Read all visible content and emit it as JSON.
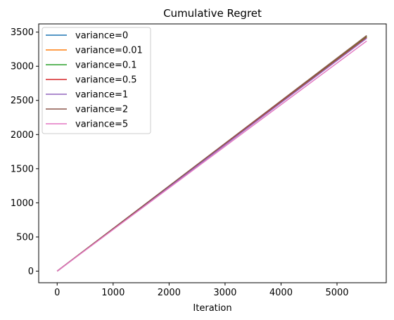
{
  "chart_data": {
    "type": "line",
    "title": "Cumulative Regret",
    "xlabel": "Iteration",
    "ylabel": "",
    "xlim": [
      -330,
      5880
    ],
    "ylim": [
      -170,
      3620
    ],
    "xticks": [
      0,
      1000,
      2000,
      3000,
      4000,
      5000
    ],
    "yticks": [
      0,
      500,
      1000,
      1500,
      2000,
      2500,
      3000,
      3500
    ],
    "grid": false,
    "legend_position": "top-left",
    "series": [
      {
        "name": "variance=0",
        "color": "#1f77b4",
        "x": [
          0,
          5530
        ],
        "y": [
          0,
          3440
        ]
      },
      {
        "name": "variance=0.01",
        "color": "#ff7f0e",
        "x": [
          0,
          5530
        ],
        "y": [
          0,
          3435
        ]
      },
      {
        "name": "variance=0.1",
        "color": "#2ca02c",
        "x": [
          0,
          5530
        ],
        "y": [
          0,
          3430
        ]
      },
      {
        "name": "variance=0.5",
        "color": "#d62728",
        "x": [
          0,
          5530
        ],
        "y": [
          0,
          3420
        ]
      },
      {
        "name": "variance=1",
        "color": "#9467bd",
        "x": [
          0,
          5530
        ],
        "y": [
          0,
          3410
        ]
      },
      {
        "name": "variance=2",
        "color": "#8c564b",
        "x": [
          0,
          5530
        ],
        "y": [
          0,
          3450
        ]
      },
      {
        "name": "variance=5",
        "color": "#e377c2",
        "x": [
          0,
          5530
        ],
        "y": [
          0,
          3370
        ]
      }
    ]
  }
}
